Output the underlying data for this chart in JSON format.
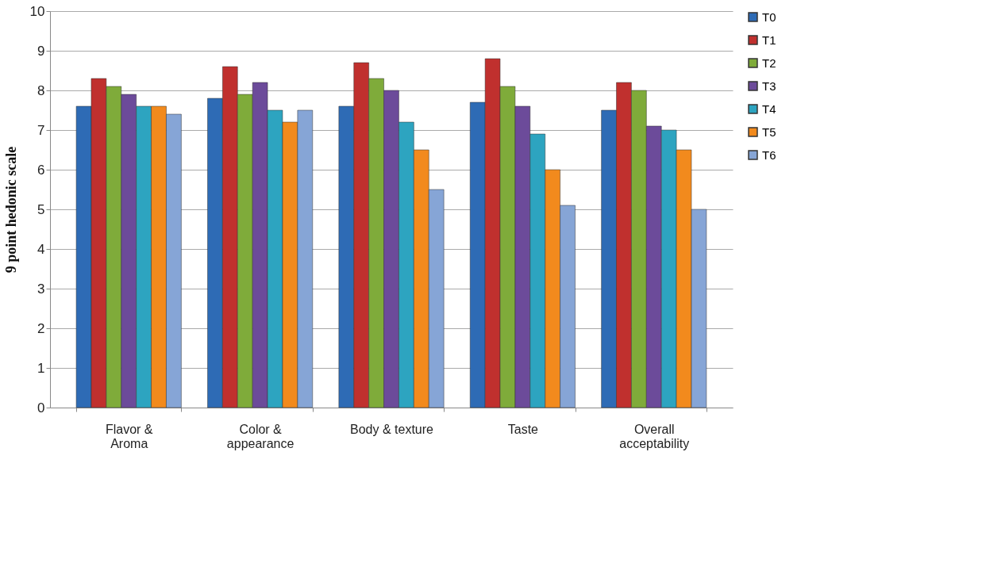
{
  "chart_data": {
    "type": "bar",
    "ylabel": "9 point hedonic scale",
    "categories": [
      "Flavor &\nAroma",
      "Color &\nappearance",
      "Body & texture",
      "Taste",
      "Overall\nacceptability"
    ],
    "series": [
      {
        "name": "T0",
        "color": "#2e6bb5",
        "values": [
          7.6,
          7.8,
          7.6,
          7.7,
          7.5
        ]
      },
      {
        "name": "T1",
        "color": "#c0302e",
        "values": [
          8.3,
          8.6,
          8.7,
          8.8,
          8.2
        ]
      },
      {
        "name": "T2",
        "color": "#7fab3a",
        "values": [
          8.1,
          7.9,
          8.3,
          8.1,
          8.0
        ]
      },
      {
        "name": "T3",
        "color": "#6c4b9a",
        "values": [
          7.9,
          8.2,
          8.0,
          7.6,
          7.1
        ]
      },
      {
        "name": "T4",
        "color": "#2da4c0",
        "values": [
          7.6,
          7.5,
          7.2,
          6.9,
          7.0
        ]
      },
      {
        "name": "T5",
        "color": "#f28a1d",
        "values": [
          7.6,
          7.2,
          6.5,
          6.0,
          6.5
        ]
      },
      {
        "name": "T6",
        "color": "#86a5d6",
        "values": [
          7.4,
          7.5,
          5.5,
          5.1,
          5.0
        ]
      }
    ],
    "ylim": [
      0,
      10
    ],
    "yticks": [
      0,
      1,
      2,
      3,
      4,
      5,
      6,
      7,
      8,
      9,
      10
    ],
    "grid": "y",
    "legend": "right"
  }
}
